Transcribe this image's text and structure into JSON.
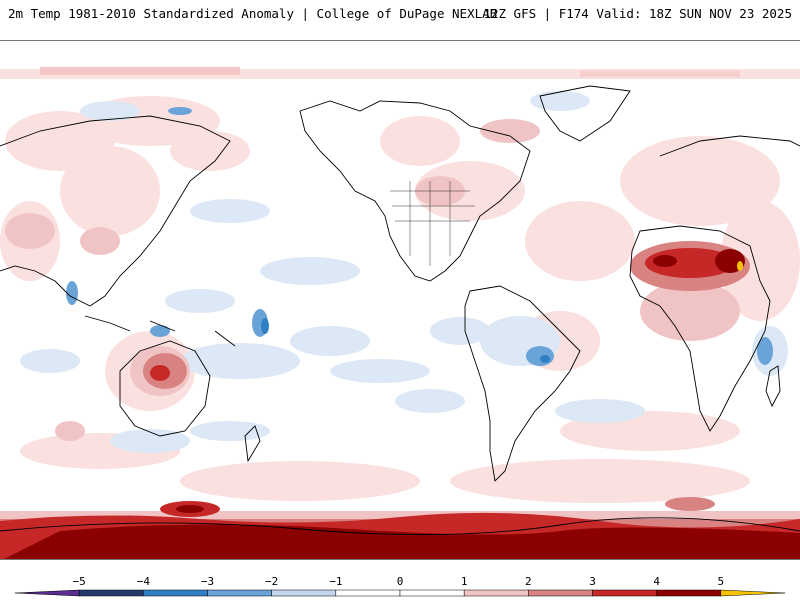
{
  "header": {
    "title_left": "2m Temp 1981-2010 Standardized Anomaly | College of DuPage NEXLAB",
    "title_right": "12Z GFS | F174 Valid: 18Z SUN NOV 23 2025"
  },
  "map": {
    "projection": "cylindrical-equidistant",
    "center_longitude": -150,
    "field": "2m temperature standardized anomaly"
  },
  "colorbar": {
    "ticks": [
      "−5",
      "−4",
      "−3",
      "−2",
      "−1",
      "0",
      "1",
      "2",
      "3",
      "4",
      "5"
    ],
    "colors": [
      "#5a2d91",
      "#243a6b",
      "#2e7fc4",
      "#6aa3d8",
      "#c2d6ee",
      "#ffffff",
      "#ffffff",
      "#f0c4c4",
      "#d98282",
      "#c62828",
      "#8b0000",
      "#f5c400"
    ]
  }
}
